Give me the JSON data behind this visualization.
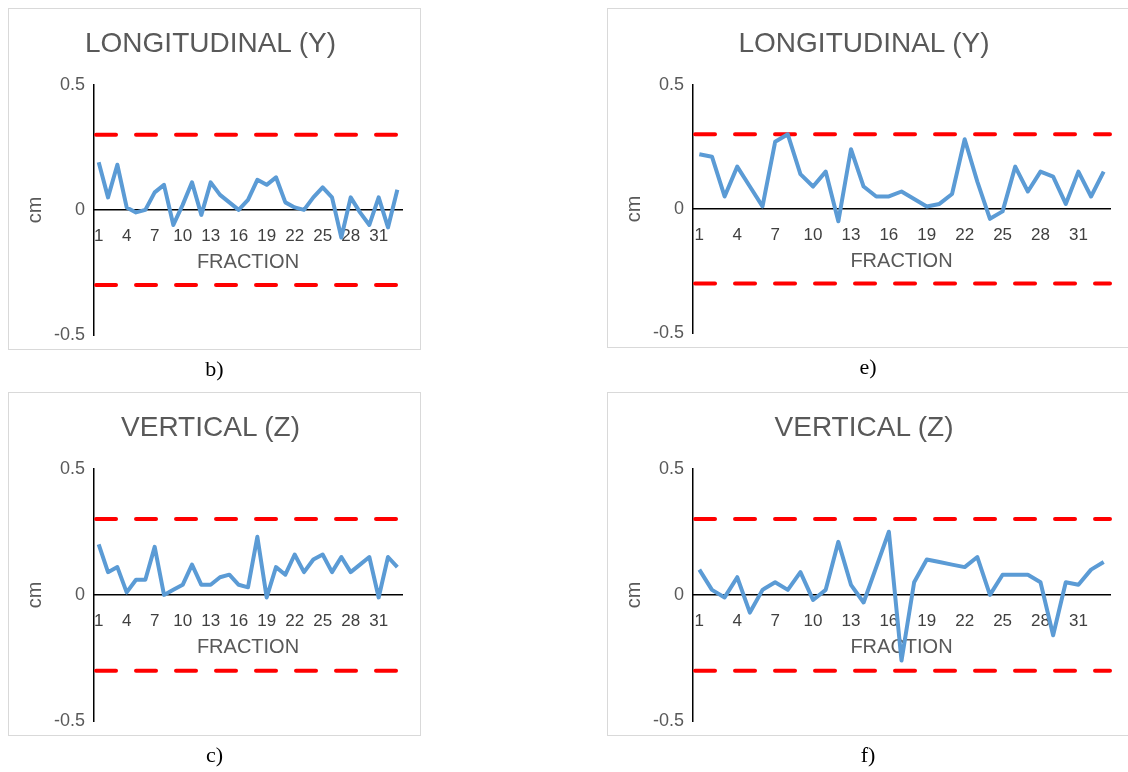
{
  "chart_data": [
    {
      "type": "line",
      "title": "LONGITUDINAL (Y)",
      "xlabel": "FRACTION",
      "ylabel": "cm",
      "annotations": [
        "b)"
      ],
      "categories": [
        "1",
        null,
        null,
        "4",
        null,
        null,
        "7",
        null,
        null,
        "10",
        null,
        null,
        "13",
        null,
        null,
        "16",
        null,
        null,
        "19",
        null,
        null,
        "22",
        null,
        null,
        "25",
        null,
        null,
        "28",
        null,
        null,
        "31",
        null,
        null
      ],
      "series": [
        {
          "color": "#5b9bd5",
          "values": [
            0.19,
            0.05,
            0.18,
            0.01,
            -0.01,
            0.0,
            0.07,
            0.1,
            -0.06,
            0.02,
            0.11,
            -0.02,
            0.11,
            0.06,
            0.03,
            0.0,
            0.04,
            0.12,
            0.1,
            0.13,
            0.03,
            0.01,
            0.0,
            0.05,
            0.09,
            0.05,
            -0.11,
            0.05,
            -0.01,
            -0.06,
            0.05,
            -0.07,
            0.08
          ]
        }
      ],
      "ylim": [
        -0.5,
        0.5
      ],
      "yticks": [
        -0.5,
        0,
        0.5
      ],
      "grid": false,
      "legend": false,
      "marker": "none",
      "line_style": "solid",
      "ref_lines": [
        {
          "axis": "y",
          "value": 0.3,
          "color": "#ff0000",
          "line_style": "dashed"
        },
        {
          "axis": "y",
          "value": -0.3,
          "color": "#ff0000",
          "line_style": "dashed"
        }
      ]
    },
    {
      "type": "line",
      "title": "LONGITUDINAL (Y)",
      "xlabel": "FRACTION",
      "ylabel": "cm",
      "annotations": [
        "e)"
      ],
      "categories": [
        "1",
        null,
        null,
        "4",
        null,
        null,
        "7",
        null,
        null,
        "10",
        null,
        null,
        "13",
        null,
        null,
        "16",
        null,
        null,
        "19",
        null,
        null,
        "22",
        null,
        null,
        "25",
        null,
        null,
        "28",
        null,
        null,
        "31",
        null,
        null
      ],
      "series": [
        {
          "color": "#5b9bd5",
          "values": [
            0.22,
            0.21,
            0.05,
            0.17,
            0.09,
            0.01,
            0.27,
            0.3,
            0.14,
            0.09,
            0.15,
            -0.05,
            0.24,
            0.09,
            0.05,
            0.05,
            0.07,
            0.04,
            0.01,
            0.02,
            0.06,
            0.28,
            0.11,
            -0.04,
            -0.01,
            0.17,
            0.07,
            0.15,
            0.13,
            0.02,
            0.15,
            0.05,
            0.15
          ]
        }
      ],
      "ylim": [
        -0.5,
        0.5
      ],
      "yticks": [
        -0.5,
        0,
        0.5
      ],
      "grid": false,
      "legend": false,
      "marker": "none",
      "line_style": "solid",
      "ref_lines": [
        {
          "axis": "y",
          "value": 0.3,
          "color": "#ff0000",
          "line_style": "dashed"
        },
        {
          "axis": "y",
          "value": -0.3,
          "color": "#ff0000",
          "line_style": "dashed"
        }
      ]
    },
    {
      "type": "line",
      "title": "VERTICAL (Z)",
      "xlabel": "FRACTION",
      "ylabel": "cm",
      "annotations": [
        "c)"
      ],
      "categories": [
        "1",
        null,
        null,
        "4",
        null,
        null,
        "7",
        null,
        null,
        "10",
        null,
        null,
        "13",
        null,
        null,
        "16",
        null,
        null,
        "19",
        null,
        null,
        "22",
        null,
        null,
        "25",
        null,
        null,
        "28",
        null,
        null,
        "31",
        null,
        null
      ],
      "series": [
        {
          "color": "#5b9bd5",
          "values": [
            0.2,
            0.09,
            0.11,
            0.01,
            0.06,
            0.06,
            0.19,
            0.0,
            0.02,
            0.04,
            0.12,
            0.04,
            0.04,
            0.07,
            0.08,
            0.04,
            0.03,
            0.23,
            -0.01,
            0.11,
            0.08,
            0.16,
            0.09,
            0.14,
            0.16,
            0.09,
            0.15,
            0.09,
            0.12,
            0.15,
            -0.01,
            0.15,
            0.11
          ]
        }
      ],
      "ylim": [
        -0.5,
        0.5
      ],
      "yticks": [
        -0.5,
        0,
        0.5
      ],
      "grid": false,
      "legend": false,
      "marker": "none",
      "line_style": "solid",
      "ref_lines": [
        {
          "axis": "y",
          "value": 0.3,
          "color": "#ff0000",
          "line_style": "dashed"
        },
        {
          "axis": "y",
          "value": -0.3,
          "color": "#ff0000",
          "line_style": "dashed"
        }
      ]
    },
    {
      "type": "line",
      "title": "VERTICAL (Z)",
      "xlabel": "FRACTION",
      "ylabel": "cm",
      "annotations": [
        "f)"
      ],
      "categories": [
        "1",
        null,
        null,
        "4",
        null,
        null,
        "7",
        null,
        null,
        "10",
        null,
        null,
        "13",
        null,
        null,
        "16",
        null,
        null,
        "19",
        null,
        null,
        "22",
        null,
        null,
        "25",
        null,
        null,
        "28",
        null,
        null,
        "31",
        null,
        null
      ],
      "series": [
        {
          "color": "#5b9bd5",
          "values": [
            0.1,
            0.02,
            -0.01,
            0.07,
            -0.07,
            0.02,
            0.05,
            0.02,
            0.09,
            -0.02,
            0.02,
            0.21,
            0.04,
            -0.03,
            0.11,
            0.25,
            -0.26,
            0.05,
            0.14,
            0.13,
            0.12,
            0.11,
            0.15,
            0.0,
            0.08,
            0.08,
            0.08,
            0.05,
            -0.16,
            0.05,
            0.04,
            0.1,
            0.13
          ]
        }
      ],
      "ylim": [
        -0.5,
        0.5
      ],
      "yticks": [
        -0.5,
        0,
        0.5
      ],
      "grid": false,
      "legend": false,
      "marker": "none",
      "line_style": "solid",
      "ref_lines": [
        {
          "axis": "y",
          "value": 0.3,
          "color": "#ff0000",
          "line_style": "dashed"
        },
        {
          "axis": "y",
          "value": -0.3,
          "color": "#ff0000",
          "line_style": "dashed"
        }
      ]
    }
  ]
}
